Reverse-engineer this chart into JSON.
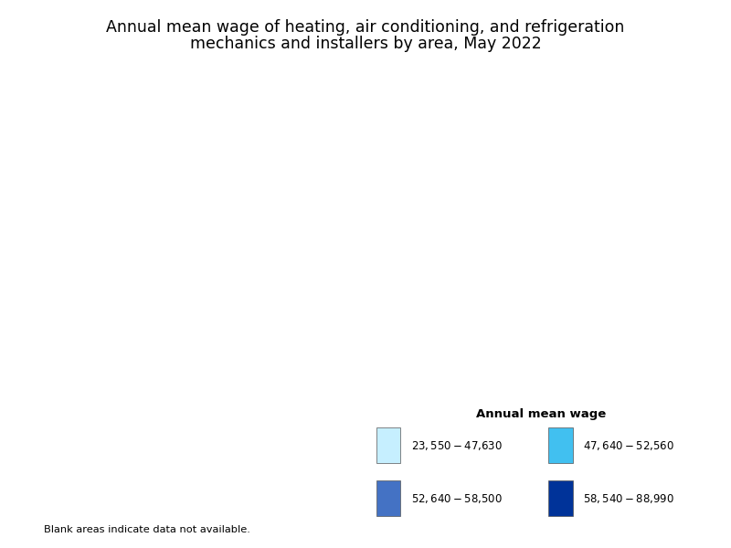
{
  "title_line1": "Annual mean wage of heating, air conditioning, and refrigeration",
  "title_line2": "mechanics and installers by area, May 2022",
  "title_fontsize": 12.5,
  "legend_title": "Annual mean wage",
  "legend_title_fontsize": 9.5,
  "legend_fontsize": 8.5,
  "legend_labels": [
    "$23,550 - $47,630",
    "$47,640 - $52,560",
    "$52,640 - $58,500",
    "$58,540 - $88,990"
  ],
  "legend_colors": [
    "#c6efff",
    "#41c0f0",
    "#4472c4",
    "#003399"
  ],
  "blank_note": "Blank areas indicate data not available.",
  "background_color": "#ffffff",
  "figsize": [
    8.0,
    6.0
  ],
  "dpi": 100,
  "map_edge_color": "#111111",
  "map_edge_width": 0.35,
  "state_edge_color": "#111111",
  "state_edge_width": 0.8
}
